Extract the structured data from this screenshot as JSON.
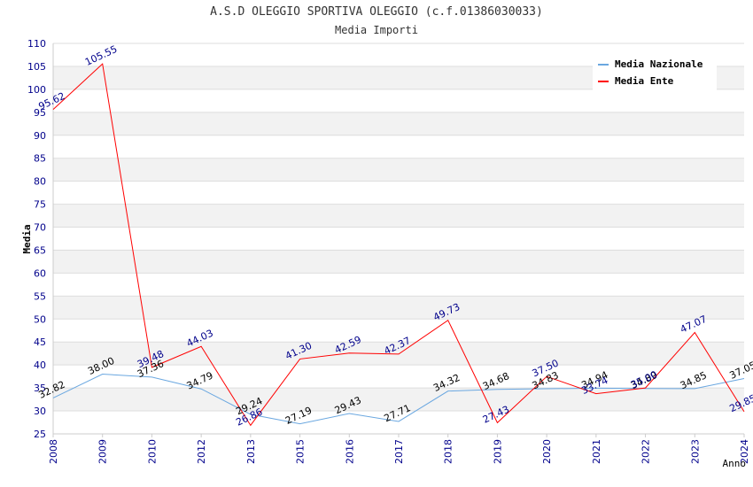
{
  "chart_data": {
    "type": "line",
    "title": "A.S.D OLEGGIO SPORTIVA OLEGGIO (c.f.01386030033)",
    "subtitle": "Media Importi",
    "xlabel": "Anno",
    "ylabel": "Media",
    "ylim": [
      25,
      110
    ],
    "ytick_step": 5,
    "grid": true,
    "legend_position": "top-right",
    "categories": [
      "2008",
      "2009",
      "2010",
      "2012",
      "2013",
      "2015",
      "2016",
      "2017",
      "2018",
      "2019",
      "2020",
      "2021",
      "2022",
      "2023",
      "2024"
    ],
    "series": [
      {
        "name": "Media Nazionale",
        "color": "#6aa7e0",
        "label_color": "#000000",
        "values": [
          32.82,
          38.0,
          37.36,
          34.79,
          29.24,
          27.19,
          29.43,
          27.71,
          34.32,
          34.68,
          34.83,
          34.94,
          34.89,
          34.85,
          37.05
        ],
        "labels": [
          "32.82",
          "38.00",
          "37.36",
          "34.79",
          "29.24",
          "27.19",
          "29.43",
          "27.71",
          "34.32",
          "34.68",
          "34.83",
          "34.94",
          "34.89",
          "34.85",
          "37.05"
        ]
      },
      {
        "name": "Media Ente",
        "color": "#ff0000",
        "label_color": "#00008b",
        "values": [
          95.62,
          105.55,
          39.48,
          44.03,
          26.86,
          41.3,
          42.59,
          42.37,
          49.73,
          27.43,
          37.5,
          33.74,
          35.0,
          47.07,
          29.85
        ],
        "labels": [
          "95.62",
          "105.55",
          "39.48",
          "44.03",
          "26.86",
          "41.30",
          "42.59",
          "42.37",
          "49.73",
          "27.43",
          "37.50",
          "33.74",
          "35.00",
          "47.07",
          "29.85"
        ]
      }
    ]
  }
}
